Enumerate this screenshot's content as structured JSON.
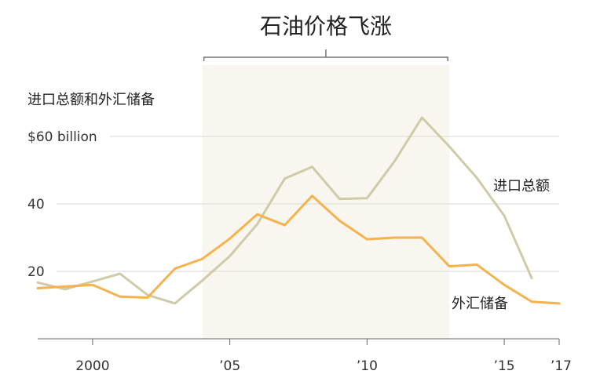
{
  "chart_data": {
    "type": "line",
    "title": "",
    "ylabel": "进口总额和外汇储备",
    "ylim": [
      0,
      70
    ],
    "xlim": [
      1998,
      2017
    ],
    "grid": true,
    "x_ticks": [
      {
        "value": 2000,
        "label": "2000"
      },
      {
        "value": 2005,
        "label": "’05"
      },
      {
        "value": 2010,
        "label": "’10"
      },
      {
        "value": 2015,
        "label": "’15"
      },
      {
        "value": 2017,
        "label": "’17"
      }
    ],
    "y_ticks": [
      {
        "value": 20,
        "label": "20"
      },
      {
        "value": 40,
        "label": "40"
      },
      {
        "value": 60,
        "label": "$60 billion"
      }
    ],
    "annotation": {
      "label": "石油价格飞涨",
      "x_start": 2004,
      "x_end": 2013
    },
    "series": [
      {
        "name": "进口总额",
        "color": "#cfcba8",
        "x": [
          1998,
          1999,
          2000,
          2001,
          2002,
          2003,
          2004,
          2005,
          2006,
          2007,
          2008,
          2009,
          2010,
          2011,
          2012,
          2013,
          2014,
          2015,
          2016
        ],
        "values": [
          16.7,
          14.7,
          17.0,
          19.3,
          13.0,
          10.5,
          17.3,
          24.5,
          34.0,
          47.5,
          51.0,
          41.5,
          41.7,
          52.6,
          65.6,
          57.0,
          47.7,
          36.5,
          18.0
        ]
      },
      {
        "name": "外汇储备",
        "color": "#f5b24e",
        "x": [
          1998,
          1999,
          2000,
          2001,
          2002,
          2003,
          2004,
          2005,
          2006,
          2007,
          2008,
          2009,
          2010,
          2011,
          2012,
          2013,
          2014,
          2015,
          2016,
          2017
        ],
        "values": [
          15.0,
          15.5,
          16.0,
          12.5,
          12.2,
          20.8,
          23.7,
          29.7,
          36.9,
          33.7,
          42.4,
          35.0,
          29.5,
          30.0,
          30.0,
          21.5,
          22.0,
          16.0,
          11.0,
          10.5
        ]
      }
    ]
  }
}
